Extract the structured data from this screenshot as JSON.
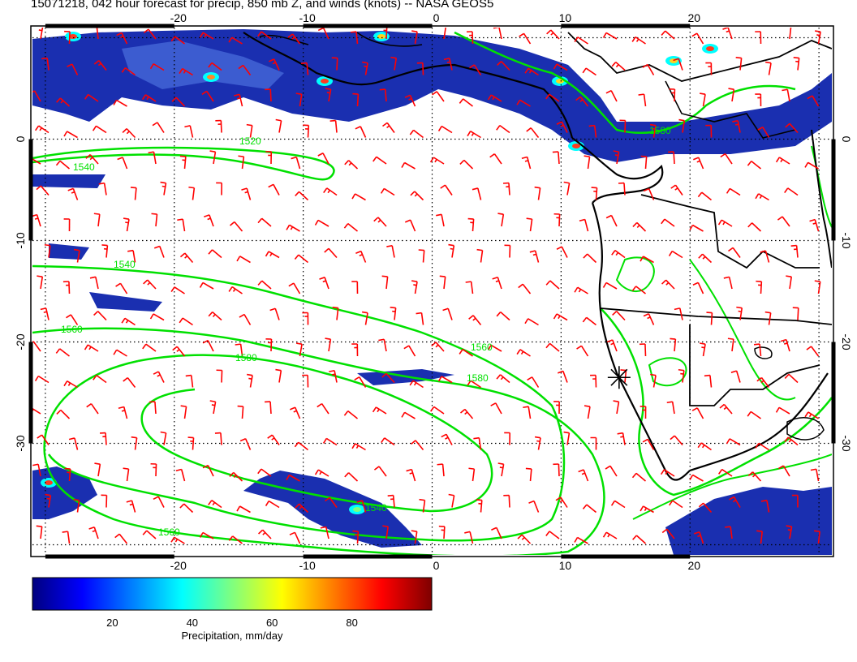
{
  "title": "15071218, 042 hour forecast for precip, 850 mb Z, and winds (knots) -- NASA GEOS5",
  "map": {
    "lon_range": [
      -31,
      31
    ],
    "lat_range": [
      -41,
      11
    ],
    "lon_ticks": [
      "-20",
      "-10",
      "0",
      "10",
      "20"
    ],
    "lat_ticks": [
      "0",
      "-10",
      "-20",
      "-30"
    ],
    "contour_labels": [
      "1540",
      "1560",
      "1580",
      "1520",
      "1540",
      "1560",
      "1580",
      "1540",
      "1560",
      "1580"
    ],
    "colors": {
      "coast": "#000000",
      "contours": "#00e000",
      "barbs": "#ff0000",
      "grid": "#000000"
    },
    "marker": "asterisk-star-icon"
  },
  "colorbar": {
    "label": "Precipitation, mm/day",
    "ticks": [
      "20",
      "40",
      "60",
      "80"
    ],
    "range": [
      0,
      100
    ],
    "colors": [
      "#00007f",
      "#0000ff",
      "#007fff",
      "#00ffff",
      "#7fff7f",
      "#ffff00",
      "#ff7f00",
      "#ff0000",
      "#7f0000"
    ]
  }
}
